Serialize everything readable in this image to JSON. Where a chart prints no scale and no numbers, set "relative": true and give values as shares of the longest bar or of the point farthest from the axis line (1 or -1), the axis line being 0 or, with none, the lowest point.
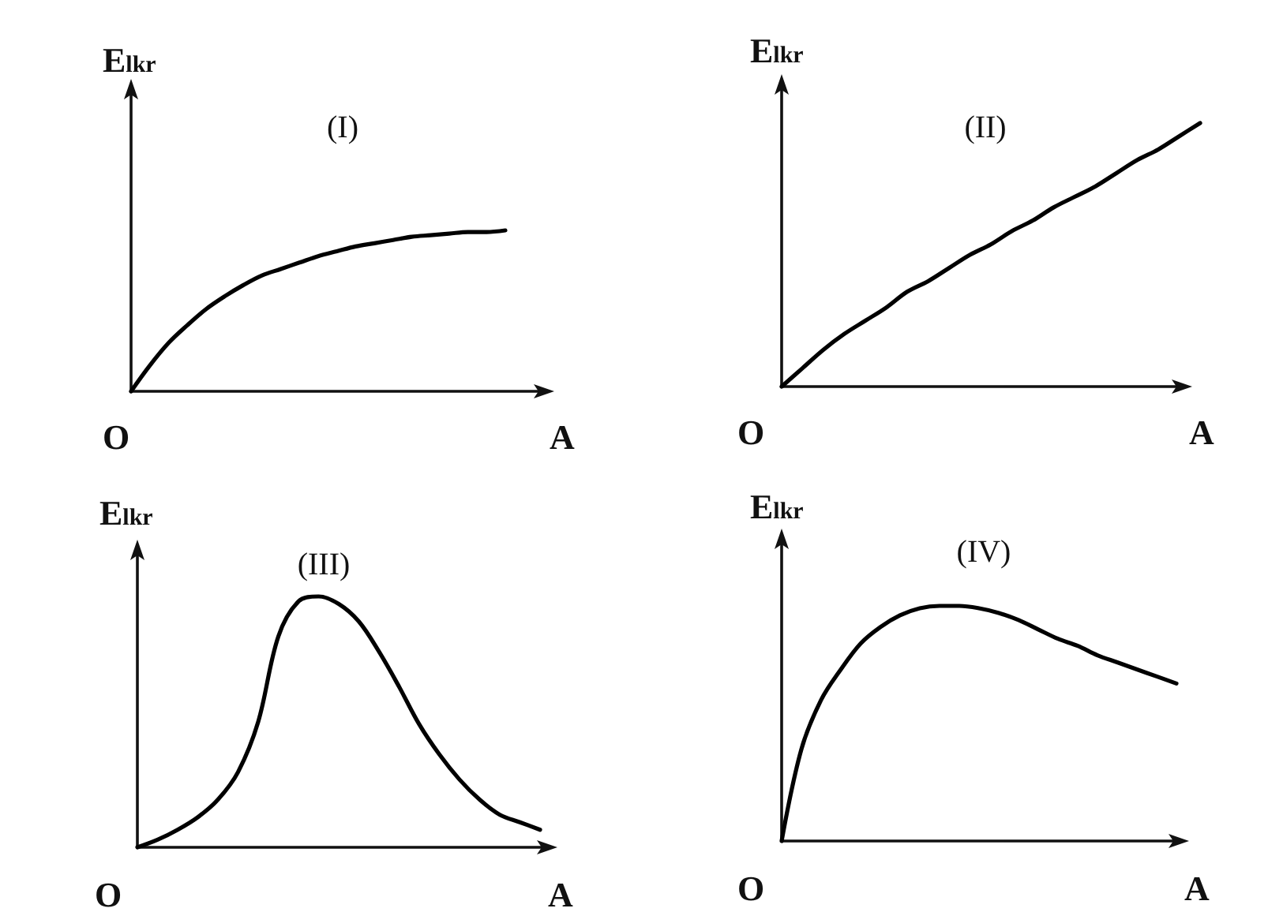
{
  "chart_data": [
    {
      "type": "line",
      "title": "(I)",
      "xlabel": "A",
      "ylabel": "E$_{lkr}$",
      "annotations": [
        "O"
      ],
      "relative": true,
      "grid": false,
      "line_style": "solid",
      "color": "#000000",
      "categories": [
        null,
        null,
        null,
        null,
        null,
        null,
        null,
        null,
        null,
        null,
        null,
        null,
        null,
        null,
        null,
        null,
        null,
        null,
        null,
        null,
        null
      ],
      "values": [
        0,
        0.16,
        0.3,
        0.41,
        0.51,
        0.59,
        0.66,
        0.72,
        0.76,
        0.8,
        0.84,
        0.87,
        0.9,
        0.92,
        0.94,
        0.96,
        0.97,
        0.98,
        0.99,
        0.99,
        1
      ]
    },
    {
      "type": "line",
      "title": "(II)",
      "xlabel": "A",
      "ylabel": "E$_{lkr}$",
      "annotations": [
        "O"
      ],
      "relative": true,
      "grid": false,
      "line_style": "solid",
      "color": "#000000",
      "categories": [
        null,
        null,
        null,
        null,
        null,
        null,
        null,
        null,
        null,
        null,
        null,
        null,
        null,
        null,
        null,
        null,
        null,
        null,
        null,
        null,
        null
      ],
      "values": [
        0,
        0.07,
        0.14,
        0.2,
        0.25,
        0.3,
        0.36,
        0.4,
        0.45,
        0.5,
        0.54,
        0.59,
        0.63,
        0.68,
        0.72,
        0.76,
        0.81,
        0.86,
        0.9,
        0.95,
        1
      ]
    },
    {
      "type": "line",
      "title": "(III)",
      "xlabel": "A",
      "ylabel": "E$_{lkr}$",
      "annotations": [
        "O"
      ],
      "relative": true,
      "grid": false,
      "line_style": "solid",
      "color": "#000000",
      "categories": [
        null,
        null,
        null,
        null,
        null,
        null,
        null,
        null,
        null,
        null,
        null,
        null,
        null,
        null,
        null,
        null,
        null,
        null,
        null,
        null,
        null
      ],
      "values": [
        0,
        0.03,
        0.07,
        0.12,
        0.19,
        0.3,
        0.5,
        0.84,
        0.98,
        1,
        0.97,
        0.9,
        0.78,
        0.64,
        0.49,
        0.37,
        0.27,
        0.19,
        0.13,
        0.1,
        0.07
      ]
    },
    {
      "type": "line",
      "title": "(IV)",
      "xlabel": "A",
      "ylabel": "E$_{lkr}$",
      "annotations": [
        "O"
      ],
      "relative": true,
      "grid": false,
      "line_style": "solid",
      "color": "#000000",
      "categories": [
        null,
        null,
        null,
        null,
        null,
        null,
        null,
        null,
        null,
        null,
        null,
        null,
        null,
        null,
        null,
        null,
        null,
        null,
        null,
        null,
        null
      ],
      "values": [
        0,
        0.39,
        0.6,
        0.73,
        0.84,
        0.91,
        0.96,
        0.99,
        1,
        1,
        0.99,
        0.97,
        0.94,
        0.9,
        0.86,
        0.83,
        0.79,
        0.76,
        0.73,
        0.7,
        0.67
      ]
    }
  ]
}
